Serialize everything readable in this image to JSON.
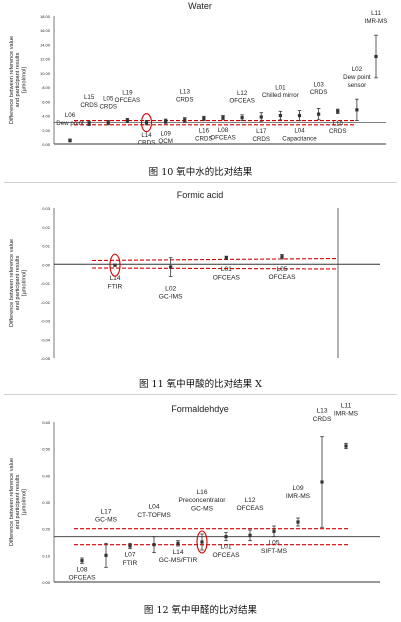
{
  "captions": [
    "图 10 氧中水的比对结果",
    "图 11 氧中甲酸的比对结果 X",
    "图 12 氧中甲醛的比对结果"
  ],
  "chart_data": [
    {
      "type": "scatter",
      "title": "Water",
      "ylabel": "Difference between reference value and participant results [µmol/mol]",
      "ylim": [
        0,
        18
      ],
      "yticks": [
        "0.00",
        "2.00",
        "4.00",
        "6.00",
        "8.00",
        "10.00",
        "12.00",
        "14.00",
        "16.00",
        "18.00"
      ],
      "reference_band": [
        2.7,
        3.3
      ],
      "points": [
        {
          "code": "L06",
          "method": "Dew point",
          "y": 0.5,
          "err": 0.2
        },
        {
          "code": "L15",
          "method": "CRDS",
          "y": 2.9,
          "err": 0.3
        },
        {
          "code": "L05",
          "method": "CRDS",
          "y": 3.0,
          "err": 0.3
        },
        {
          "code": "L19",
          "method": "OFCEAS",
          "y": 3.3,
          "err": 0.3
        },
        {
          "code": "L14",
          "method": "CRDS",
          "y": 3.0,
          "err": 0.3
        },
        {
          "code": "L09",
          "method": "QCM",
          "y": 3.2,
          "err": 0.3
        },
        {
          "code": "L13",
          "method": "CRDS",
          "y": 3.4,
          "err": 0.3
        },
        {
          "code": "L16",
          "method": "CRDS",
          "y": 3.6,
          "err": 0.3
        },
        {
          "code": "L08",
          "method": "OFCEAS",
          "y": 3.7,
          "err": 0.3
        },
        {
          "code": "L12",
          "method": "OFCEAS",
          "y": 3.7,
          "err": 0.4
        },
        {
          "code": "L17",
          "method": "CRDS",
          "y": 3.8,
          "err": 0.6
        },
        {
          "code": "L01",
          "method": "Chilled mirror",
          "y": 4.0,
          "err": 0.6
        },
        {
          "code": "L04",
          "method": "Capacitance",
          "y": 4.0,
          "err": 0.7
        },
        {
          "code": "L03",
          "method": "CRDS",
          "y": 4.2,
          "err": 0.8
        },
        {
          "code": "L10",
          "method": "CRDS",
          "y": 4.6,
          "err": 0.3
        },
        {
          "code": "L02",
          "method": "Dew point sensor",
          "y": 4.8,
          "err": 1.5
        },
        {
          "code": "L11",
          "method": "IMR-MS",
          "y": 12.3,
          "err": 3.0
        }
      ]
    },
    {
      "type": "scatter",
      "title": "Formic acid",
      "ylabel": "Difference between reference value and participant results [µmol/mol]",
      "ylim": [
        -0.05,
        0.03
      ],
      "yticks": [
        "-0.05",
        "-0.04",
        "-0.03",
        "-0.02",
        "-0.01",
        "0.00",
        "0.01",
        "0.02",
        "0.03"
      ],
      "reference_band": [
        -0.002,
        0.002
      ],
      "points": [
        {
          "code": "L14",
          "method": "FTIR",
          "y": -0.0005,
          "err": 0.0005
        },
        {
          "code": "L02",
          "method": "GC-IMS",
          "y": -0.0015,
          "err": 0.005
        },
        {
          "code": "L01",
          "method": "OFCEAS",
          "y": 0.0035,
          "err": 0.0008
        },
        {
          "code": "L05",
          "method": "OFCEAS",
          "y": 0.004,
          "err": 0.0012
        }
      ]
    },
    {
      "type": "scatter",
      "title": "Formaldehdye",
      "ylabel": "Difference between reference value and participant results [µmol/mol]",
      "ylim": [
        0.0,
        0.6
      ],
      "yticks": [
        "0.00",
        "0.10",
        "0.20",
        "0.30",
        "0.40",
        "0.50",
        "0.60"
      ],
      "reference_band": [
        0.14,
        0.2
      ],
      "points": [
        {
          "code": "L08",
          "method": "OFCEAS",
          "y": 0.08,
          "err": 0.01
        },
        {
          "code": "L17",
          "method": "GC-MS",
          "y": 0.1,
          "err": 0.045
        },
        {
          "code": "L07",
          "method": "FTIR",
          "y": 0.135,
          "err": 0.01
        },
        {
          "code": "L04",
          "method": "CT-TOFMS",
          "y": 0.14,
          "err": 0.03
        },
        {
          "code": "L14",
          "method": "GC-MS/FTIR",
          "y": 0.145,
          "err": 0.01
        },
        {
          "code": "L16",
          "method": "Preconcentrator GC-MS",
          "y": 0.15,
          "err": 0.03
        },
        {
          "code": "L01",
          "method": "OFCEAS",
          "y": 0.17,
          "err": 0.015
        },
        {
          "code": "L12",
          "method": "OFCEAS",
          "y": 0.175,
          "err": 0.02
        },
        {
          "code": "L05",
          "method": "SIFT-MS",
          "y": 0.19,
          "err": 0.02
        },
        {
          "code": "L09",
          "method": "IMR-MS",
          "y": 0.225,
          "err": 0.015
        },
        {
          "code": "L13",
          "method": "CRDS",
          "y": 0.375,
          "err": 0.17
        },
        {
          "code": "L11",
          "method": "IMR-MS",
          "y": 0.51,
          "err": 0.01
        }
      ]
    }
  ]
}
